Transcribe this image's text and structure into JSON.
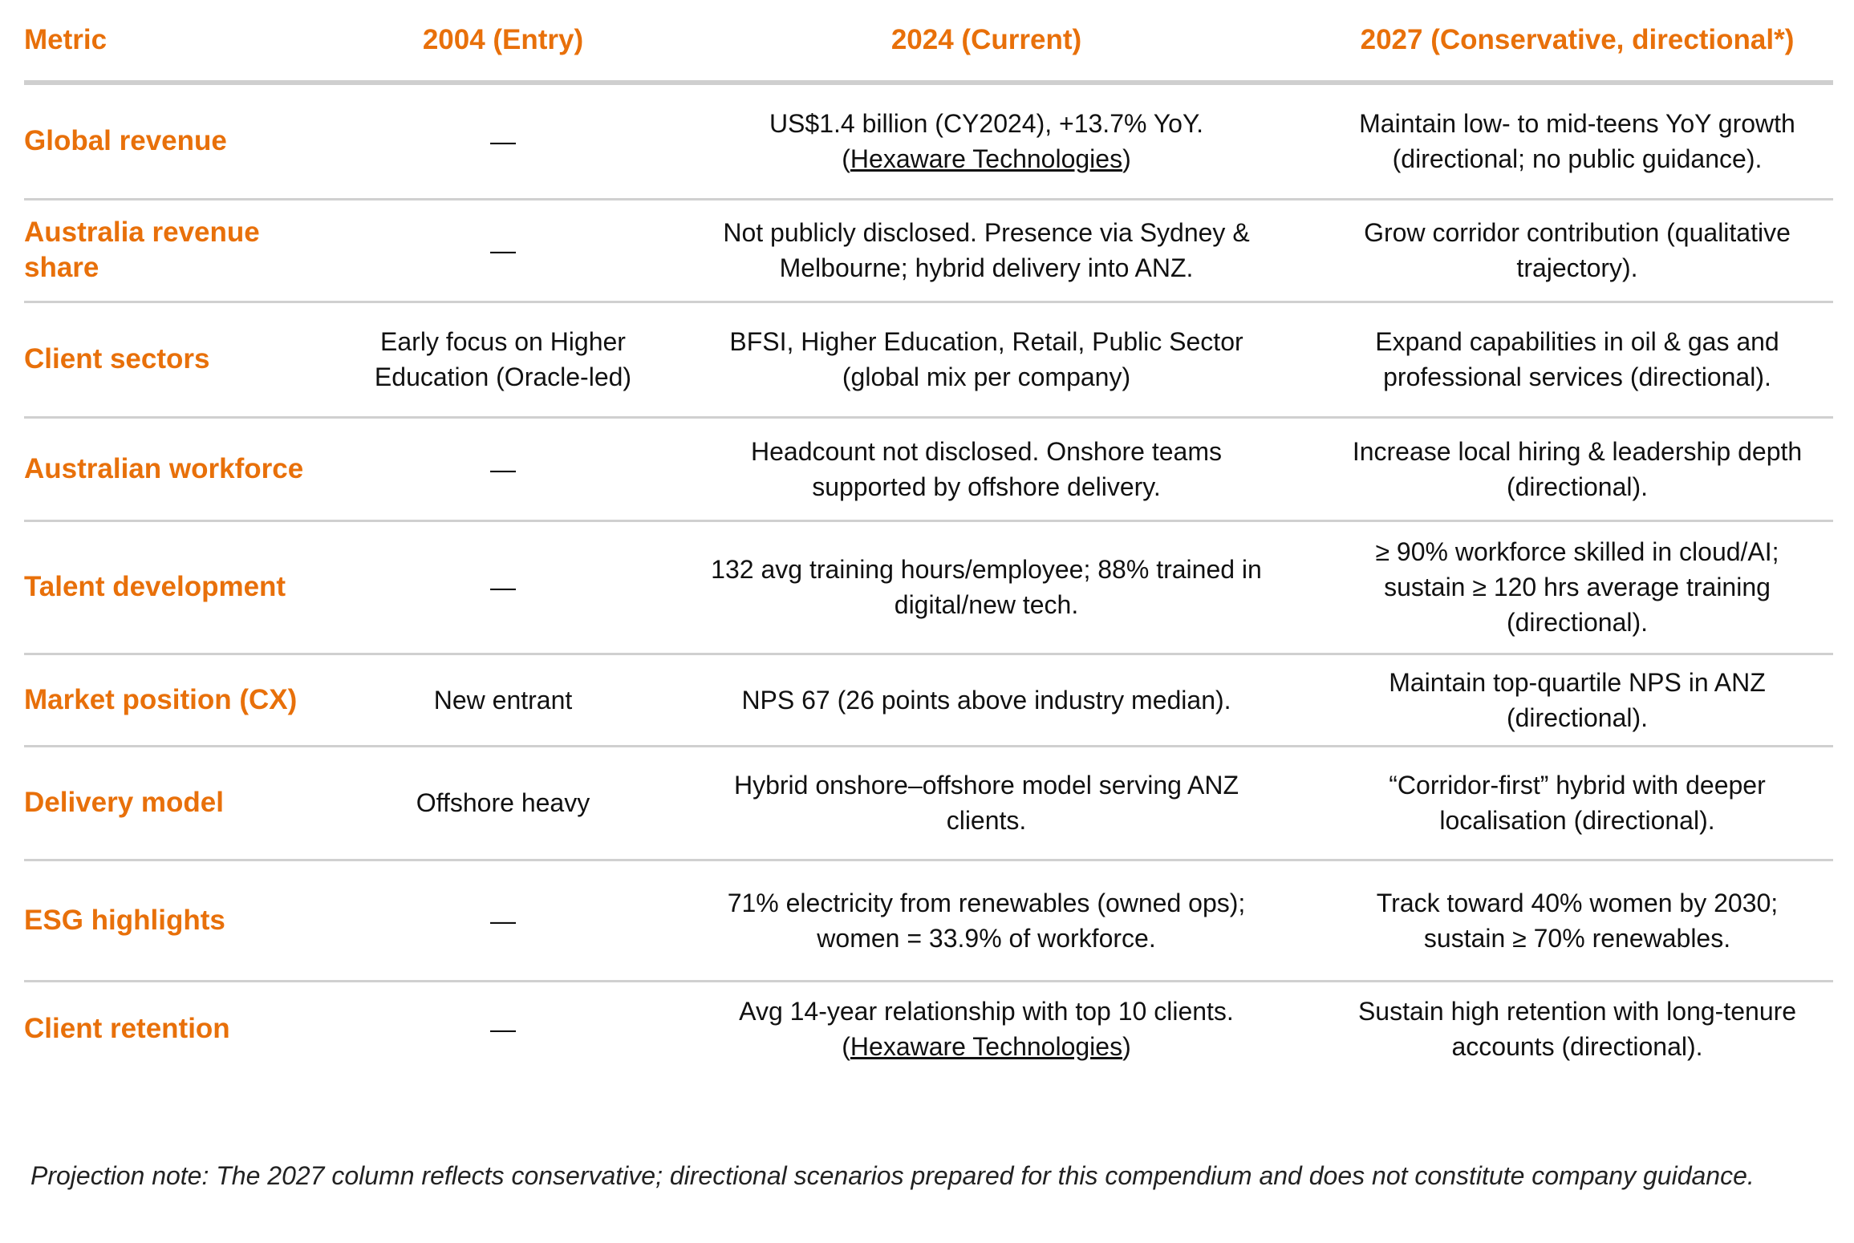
{
  "table": {
    "header": [
      "Metric",
      "2004 (Entry)",
      "2024 (Current)",
      "2027 (Conservative, directional*)"
    ],
    "rows": [
      [
        "Global revenue",
        "—",
        [
          "US$1.4 billion (CY2024), +13.7% YoY. (",
          {
            "link": "Hexaware Technologies"
          },
          ")"
        ],
        "Maintain low- to mid-teens YoY growth (directional; no public guidance)."
      ],
      [
        "Australia revenue share",
        "—",
        "Not publicly disclosed. Presence via Sydney & Melbourne; hybrid delivery into ANZ.",
        "Grow corridor contribution (qualitative trajectory)."
      ],
      [
        "Client sectors",
        "Early focus on Higher Education (Oracle-led)",
        "BFSI, Higher Education, Retail, Public Sector (global mix per company)",
        "Expand capabilities in oil & gas and professional services (directional)."
      ],
      [
        "Australian workforce",
        "—",
        "Headcount not disclosed. Onshore teams supported by offshore delivery.",
        "Increase local hiring & leadership depth (directional)."
      ],
      [
        "Talent development",
        "—",
        "132 avg training hours/employee; 88% trained in digital/new tech.",
        "≥ 90% workforce skilled in cloud/AI; sustain ≥ 120 hrs average training (directional)."
      ],
      [
        "Market position (CX)",
        "New entrant",
        "NPS 67 (26 points above industry median).",
        "Maintain top-quartile NPS in ANZ (directional)."
      ],
      [
        "Delivery model",
        "Offshore heavy",
        "Hybrid onshore–offshore model serving ANZ clients.",
        "“Corridor-first” hybrid with deeper localisation (directional)."
      ],
      [
        "ESG highlights",
        "—",
        "71% electricity from renewables (owned ops); women = 33.9% of workforce.",
        "Track toward 40% women by 2030; sustain ≥ 70% renewables."
      ],
      [
        "Client retention",
        "—",
        [
          "Avg 14-year relationship with top 10 clients. (",
          {
            "link": "Hexaware Technologies"
          },
          ")"
        ],
        "Sustain high retention with long-tenure accounts (directional)."
      ]
    ]
  },
  "note": "Projection note: The 2027 column reflects conservative; directional scenarios prepared for this compendium and does not constitute company guidance."
}
